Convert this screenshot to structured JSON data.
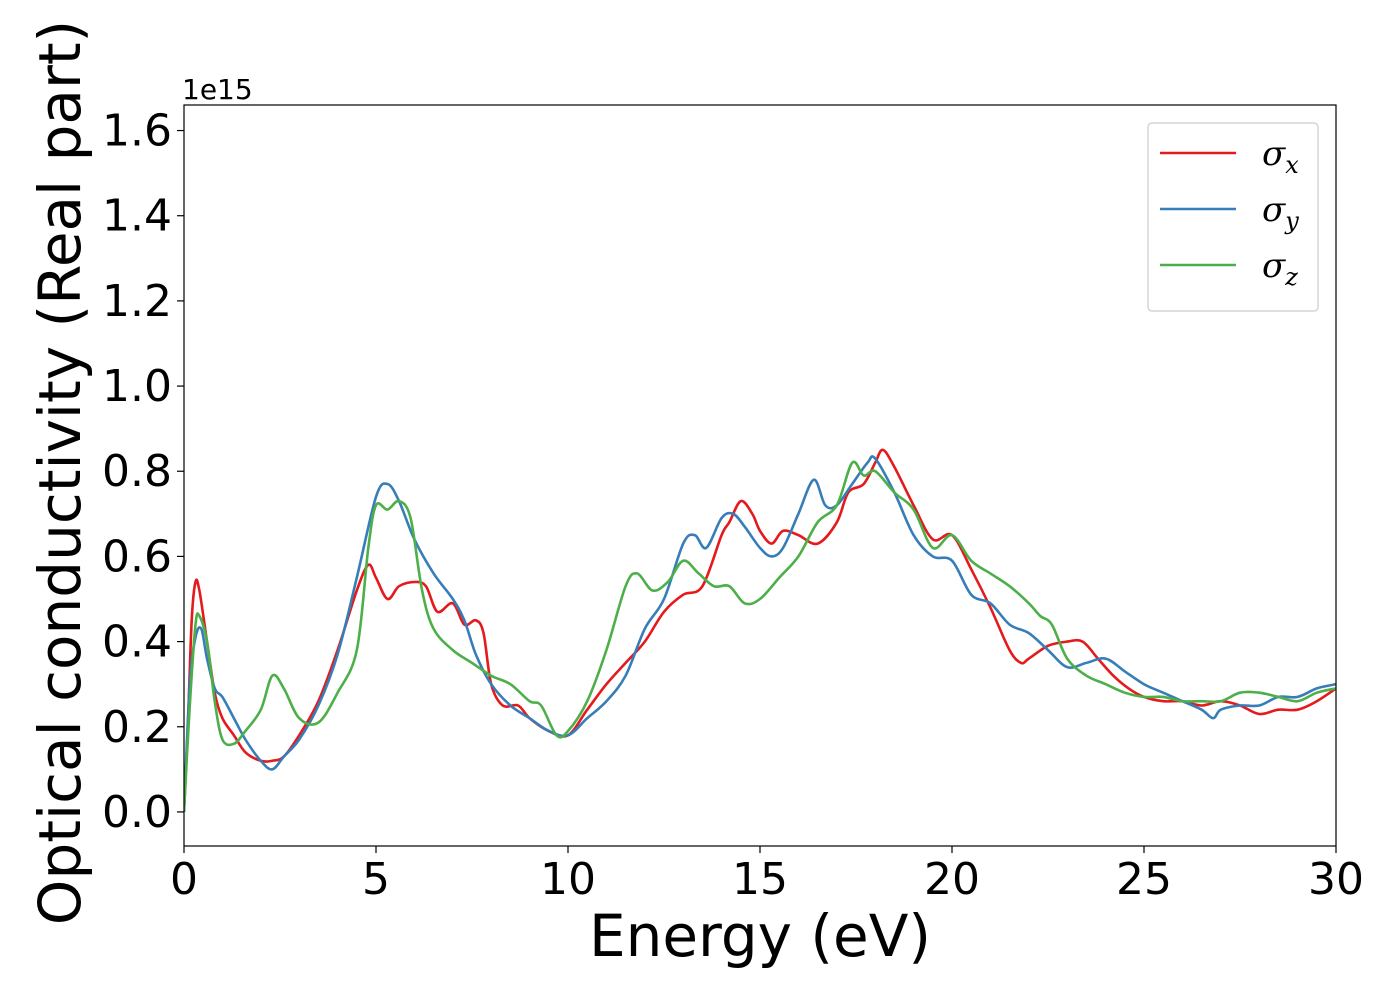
{
  "chart_data": {
    "type": "line",
    "title": "",
    "xlabel": "Energy (eV)",
    "ylabel": "Optical conductivity (Real part)",
    "y_offset_label": "1e15",
    "xlim": [
      0,
      30
    ],
    "ylim": [
      -0.08,
      1.66
    ],
    "x_ticks": [
      0,
      5,
      10,
      15,
      20,
      25,
      30
    ],
    "x_tick_labels": [
      "0",
      "5",
      "10",
      "15",
      "20",
      "25",
      "30"
    ],
    "y_ticks": [
      0.0,
      0.2,
      0.4,
      0.6,
      0.8,
      1.0,
      1.2,
      1.4,
      1.6
    ],
    "y_tick_labels": [
      "0.0",
      "0.2",
      "0.4",
      "0.6",
      "0.8",
      "1.0",
      "1.2",
      "1.4",
      "1.6"
    ],
    "grid": false,
    "legend_position": "top-right",
    "series": [
      {
        "name": "σx",
        "symbol": "σ",
        "subscript": "x",
        "color": "#e41a1c",
        "points": [
          [
            0,
            0.0
          ],
          [
            0.1,
            0.2
          ],
          [
            0.2,
            0.45
          ],
          [
            0.3,
            0.54
          ],
          [
            0.4,
            0.52
          ],
          [
            0.6,
            0.4
          ],
          [
            0.8,
            0.28
          ],
          [
            1.0,
            0.22
          ],
          [
            1.3,
            0.18
          ],
          [
            1.6,
            0.14
          ],
          [
            2.0,
            0.12
          ],
          [
            2.3,
            0.12
          ],
          [
            2.6,
            0.13
          ],
          [
            3.0,
            0.18
          ],
          [
            3.5,
            0.26
          ],
          [
            4.0,
            0.38
          ],
          [
            4.5,
            0.52
          ],
          [
            4.8,
            0.58
          ],
          [
            5.0,
            0.55
          ],
          [
            5.3,
            0.5
          ],
          [
            5.6,
            0.53
          ],
          [
            6.0,
            0.54
          ],
          [
            6.3,
            0.53
          ],
          [
            6.6,
            0.47
          ],
          [
            7.0,
            0.49
          ],
          [
            7.3,
            0.44
          ],
          [
            7.6,
            0.45
          ],
          [
            7.8,
            0.42
          ],
          [
            8.0,
            0.3
          ],
          [
            8.3,
            0.25
          ],
          [
            8.7,
            0.25
          ],
          [
            9.0,
            0.22
          ],
          [
            9.5,
            0.19
          ],
          [
            10.0,
            0.18
          ],
          [
            10.5,
            0.24
          ],
          [
            11.0,
            0.3
          ],
          [
            11.5,
            0.35
          ],
          [
            12.0,
            0.4
          ],
          [
            12.5,
            0.47
          ],
          [
            13.0,
            0.51
          ],
          [
            13.5,
            0.53
          ],
          [
            14.0,
            0.65
          ],
          [
            14.2,
            0.68
          ],
          [
            14.5,
            0.73
          ],
          [
            14.8,
            0.7
          ],
          [
            15.0,
            0.66
          ],
          [
            15.3,
            0.63
          ],
          [
            15.6,
            0.66
          ],
          [
            16.0,
            0.65
          ],
          [
            16.5,
            0.63
          ],
          [
            17.0,
            0.68
          ],
          [
            17.3,
            0.75
          ],
          [
            17.7,
            0.77
          ],
          [
            18.0,
            0.82
          ],
          [
            18.2,
            0.85
          ],
          [
            18.5,
            0.81
          ],
          [
            19.0,
            0.72
          ],
          [
            19.5,
            0.64
          ],
          [
            20.0,
            0.65
          ],
          [
            20.5,
            0.57
          ],
          [
            21.0,
            0.48
          ],
          [
            21.5,
            0.38
          ],
          [
            21.8,
            0.35
          ],
          [
            22.0,
            0.36
          ],
          [
            22.5,
            0.39
          ],
          [
            23.0,
            0.4
          ],
          [
            23.4,
            0.4
          ],
          [
            23.8,
            0.36
          ],
          [
            24.2,
            0.32
          ],
          [
            24.6,
            0.29
          ],
          [
            25.0,
            0.27
          ],
          [
            25.5,
            0.26
          ],
          [
            26.0,
            0.26
          ],
          [
            26.5,
            0.25
          ],
          [
            27.0,
            0.26
          ],
          [
            27.5,
            0.25
          ],
          [
            28.0,
            0.23
          ],
          [
            28.5,
            0.24
          ],
          [
            29.0,
            0.24
          ],
          [
            29.5,
            0.26
          ],
          [
            30.0,
            0.29
          ]
        ]
      },
      {
        "name": "σy",
        "symbol": "σ",
        "subscript": "y",
        "color": "#377eb8",
        "points": [
          [
            0,
            0.0
          ],
          [
            0.15,
            0.3
          ],
          [
            0.3,
            0.41
          ],
          [
            0.45,
            0.43
          ],
          [
            0.6,
            0.36
          ],
          [
            0.8,
            0.29
          ],
          [
            1.0,
            0.27
          ],
          [
            1.3,
            0.22
          ],
          [
            1.6,
            0.17
          ],
          [
            2.0,
            0.12
          ],
          [
            2.3,
            0.1
          ],
          [
            2.6,
            0.13
          ],
          [
            3.0,
            0.17
          ],
          [
            3.5,
            0.25
          ],
          [
            4.0,
            0.37
          ],
          [
            4.5,
            0.55
          ],
          [
            5.0,
            0.74
          ],
          [
            5.3,
            0.77
          ],
          [
            5.6,
            0.73
          ],
          [
            6.0,
            0.64
          ],
          [
            6.5,
            0.56
          ],
          [
            7.0,
            0.5
          ],
          [
            7.3,
            0.45
          ],
          [
            7.6,
            0.37
          ],
          [
            8.0,
            0.3
          ],
          [
            8.5,
            0.25
          ],
          [
            9.0,
            0.22
          ],
          [
            9.5,
            0.19
          ],
          [
            10.0,
            0.18
          ],
          [
            10.5,
            0.22
          ],
          [
            11.0,
            0.26
          ],
          [
            11.5,
            0.32
          ],
          [
            12.0,
            0.43
          ],
          [
            12.5,
            0.5
          ],
          [
            13.0,
            0.63
          ],
          [
            13.3,
            0.65
          ],
          [
            13.6,
            0.62
          ],
          [
            14.0,
            0.69
          ],
          [
            14.3,
            0.7
          ],
          [
            14.6,
            0.67
          ],
          [
            15.0,
            0.62
          ],
          [
            15.3,
            0.6
          ],
          [
            15.6,
            0.62
          ],
          [
            16.0,
            0.7
          ],
          [
            16.4,
            0.78
          ],
          [
            16.7,
            0.72
          ],
          [
            17.0,
            0.72
          ],
          [
            17.4,
            0.77
          ],
          [
            17.8,
            0.82
          ],
          [
            18.0,
            0.83
          ],
          [
            18.5,
            0.75
          ],
          [
            19.0,
            0.65
          ],
          [
            19.5,
            0.6
          ],
          [
            20.0,
            0.59
          ],
          [
            20.5,
            0.51
          ],
          [
            21.0,
            0.49
          ],
          [
            21.5,
            0.44
          ],
          [
            22.0,
            0.42
          ],
          [
            22.5,
            0.38
          ],
          [
            23.0,
            0.34
          ],
          [
            23.5,
            0.35
          ],
          [
            24.0,
            0.36
          ],
          [
            24.5,
            0.33
          ],
          [
            25.0,
            0.3
          ],
          [
            25.5,
            0.28
          ],
          [
            26.0,
            0.26
          ],
          [
            26.5,
            0.24
          ],
          [
            26.8,
            0.22
          ],
          [
            27.0,
            0.24
          ],
          [
            27.5,
            0.25
          ],
          [
            28.0,
            0.25
          ],
          [
            28.5,
            0.27
          ],
          [
            29.0,
            0.27
          ],
          [
            29.5,
            0.29
          ],
          [
            30.0,
            0.3
          ]
        ]
      },
      {
        "name": "σz",
        "symbol": "σ",
        "subscript": "z",
        "color": "#4daf4a",
        "points": [
          [
            0,
            0.0
          ],
          [
            0.15,
            0.25
          ],
          [
            0.3,
            0.44
          ],
          [
            0.4,
            0.46
          ],
          [
            0.6,
            0.4
          ],
          [
            0.8,
            0.26
          ],
          [
            1.0,
            0.17
          ],
          [
            1.3,
            0.16
          ],
          [
            1.6,
            0.19
          ],
          [
            2.0,
            0.24
          ],
          [
            2.3,
            0.32
          ],
          [
            2.6,
            0.29
          ],
          [
            3.0,
            0.22
          ],
          [
            3.5,
            0.21
          ],
          [
            4.0,
            0.28
          ],
          [
            4.5,
            0.38
          ],
          [
            4.8,
            0.62
          ],
          [
            5.0,
            0.72
          ],
          [
            5.3,
            0.71
          ],
          [
            5.6,
            0.73
          ],
          [
            5.9,
            0.69
          ],
          [
            6.2,
            0.52
          ],
          [
            6.5,
            0.43
          ],
          [
            7.0,
            0.38
          ],
          [
            7.5,
            0.35
          ],
          [
            8.0,
            0.32
          ],
          [
            8.5,
            0.3
          ],
          [
            9.0,
            0.26
          ],
          [
            9.3,
            0.25
          ],
          [
            9.7,
            0.18
          ],
          [
            10.0,
            0.19
          ],
          [
            10.5,
            0.26
          ],
          [
            11.0,
            0.38
          ],
          [
            11.5,
            0.53
          ],
          [
            11.8,
            0.56
          ],
          [
            12.2,
            0.52
          ],
          [
            12.6,
            0.54
          ],
          [
            13.0,
            0.59
          ],
          [
            13.4,
            0.56
          ],
          [
            13.8,
            0.53
          ],
          [
            14.2,
            0.53
          ],
          [
            14.6,
            0.49
          ],
          [
            15.0,
            0.5
          ],
          [
            15.5,
            0.55
          ],
          [
            16.0,
            0.6
          ],
          [
            16.5,
            0.68
          ],
          [
            17.0,
            0.72
          ],
          [
            17.4,
            0.82
          ],
          [
            17.7,
            0.79
          ],
          [
            18.0,
            0.8
          ],
          [
            18.5,
            0.75
          ],
          [
            19.0,
            0.71
          ],
          [
            19.5,
            0.62
          ],
          [
            20.0,
            0.65
          ],
          [
            20.5,
            0.59
          ],
          [
            21.0,
            0.56
          ],
          [
            21.5,
            0.53
          ],
          [
            22.0,
            0.49
          ],
          [
            22.3,
            0.46
          ],
          [
            22.6,
            0.44
          ],
          [
            23.0,
            0.36
          ],
          [
            23.5,
            0.32
          ],
          [
            24.0,
            0.3
          ],
          [
            24.5,
            0.28
          ],
          [
            25.0,
            0.27
          ],
          [
            25.5,
            0.27
          ],
          [
            26.0,
            0.26
          ],
          [
            26.5,
            0.26
          ],
          [
            27.0,
            0.26
          ],
          [
            27.5,
            0.28
          ],
          [
            28.0,
            0.28
          ],
          [
            28.5,
            0.27
          ],
          [
            29.0,
            0.26
          ],
          [
            29.5,
            0.28
          ],
          [
            30.0,
            0.29
          ]
        ]
      }
    ]
  }
}
